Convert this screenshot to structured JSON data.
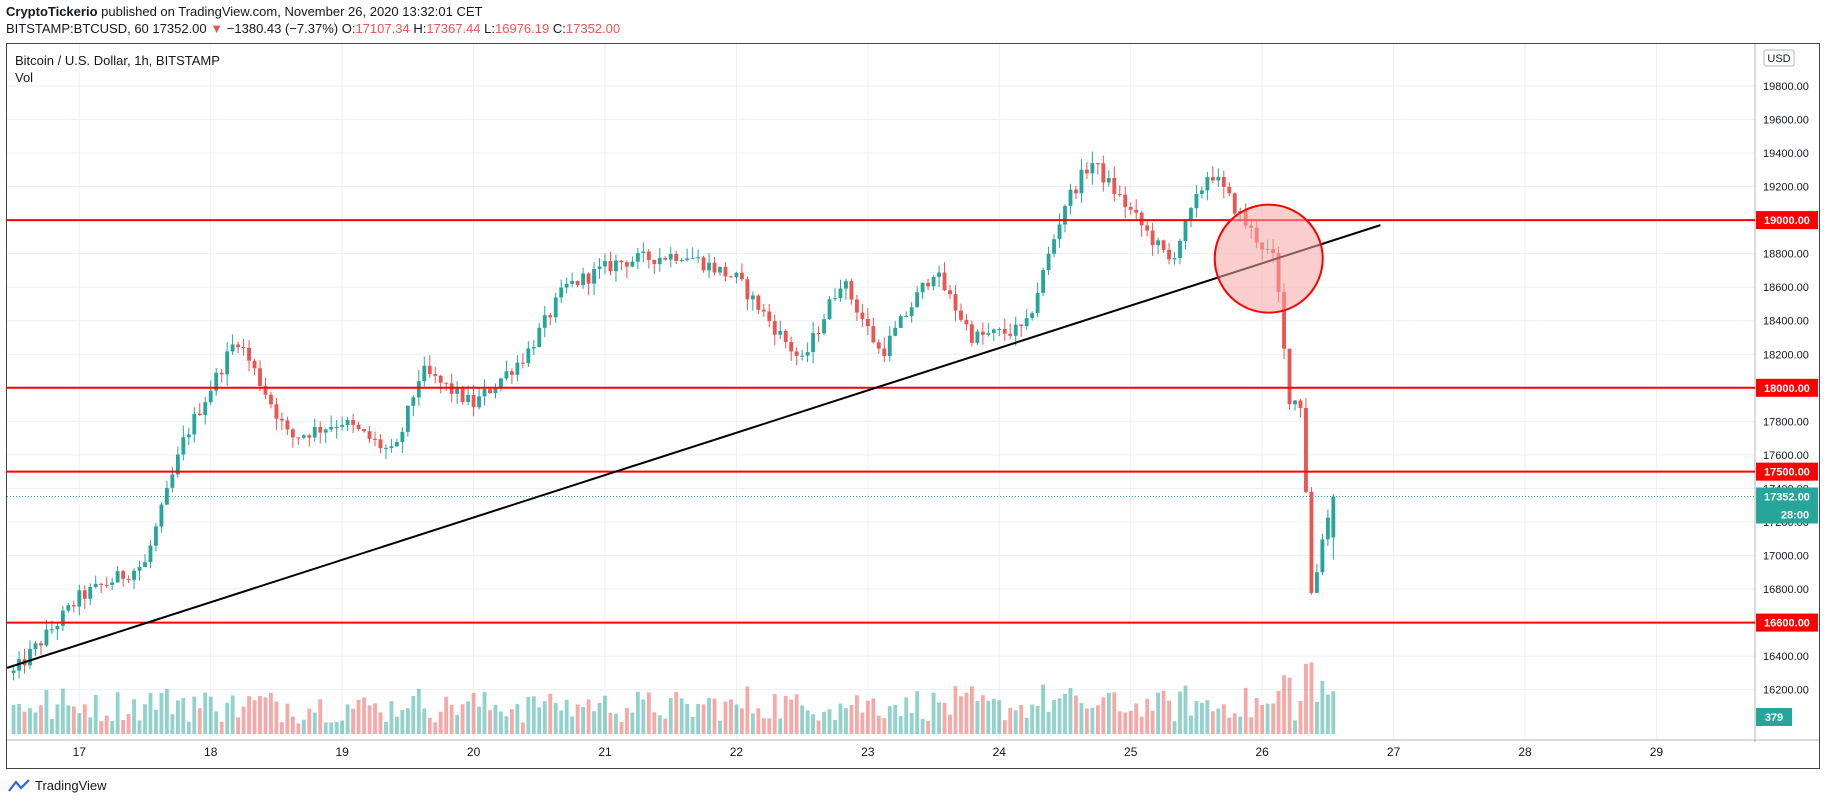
{
  "header": {
    "author": "CryptoTickerio",
    "published_text": "published on TradingView.com, November 26, 2020 13:32:01 CET",
    "symbol_line": "BITSTAMP:BTCUSD, 60",
    "last": "17352.00",
    "change": "−1380.43 (−7.37%)",
    "o_label": "O:",
    "o_val": "17107.34",
    "h_label": "H:",
    "h_val": "17367.44",
    "l_label": "L:",
    "l_val": "16976.19",
    "c_label": "C:",
    "c_val": "17352.00"
  },
  "legend": {
    "title": "Bitcoin / U.S. Dollar, 1h, BITSTAMP",
    "vol": "Vol"
  },
  "footer": {
    "brand": "TradingView"
  },
  "colors": {
    "up": "#26a69a",
    "down": "#ef5350",
    "level": "#ff0000",
    "grid": "#eceff3",
    "trend": "#000000",
    "circle_fill": "#f7a6a6",
    "circle_stroke": "#ff0000"
  },
  "chart_data": {
    "type": "candlestick",
    "title": "Bitcoin / U.S. Dollar, 1h, BITSTAMP",
    "currency_label": "USD",
    "ylim": [
      15900,
      20050
    ],
    "y_ticks": [
      16200,
      16400,
      16600,
      16800,
      17000,
      17200,
      17400,
      17600,
      17800,
      18000,
      18200,
      18400,
      18600,
      18800,
      19000,
      19200,
      19400,
      19600,
      19800
    ],
    "x_tick_labels": [
      "17",
      "18",
      "19",
      "20",
      "21",
      "22",
      "23",
      "24",
      "25",
      "26",
      "27",
      "28",
      "29"
    ],
    "x_range_days": [
      16.45,
      29.75
    ],
    "horizontal_levels": [
      {
        "price": 19000,
        "label": "19000.00"
      },
      {
        "price": 18000,
        "label": "18000.00"
      },
      {
        "price": 17500,
        "label": "17500.00"
      },
      {
        "price": 16600,
        "label": "16600.00"
      }
    ],
    "current_price": {
      "price": 17352,
      "label": "17352.00",
      "countdown": "28:00"
    },
    "volume_badge": "379",
    "trendline": {
      "from": {
        "day": 16.45,
        "price": 16330
      },
      "to": {
        "day": 26.9,
        "price": 18970
      }
    },
    "highlight_circle": {
      "day": 26.05,
      "price": 18770
    },
    "key_price_points": [
      {
        "day": 16.5,
        "price": 16300
      },
      {
        "day": 17.0,
        "price": 16750
      },
      {
        "day": 17.5,
        "price": 16950
      },
      {
        "day": 17.8,
        "price": 17700
      },
      {
        "day": 18.2,
        "price": 18300
      },
      {
        "day": 18.6,
        "price": 17700
      },
      {
        "day": 19.0,
        "price": 17800
      },
      {
        "day": 19.4,
        "price": 17600
      },
      {
        "day": 19.6,
        "price": 18100
      },
      {
        "day": 20.0,
        "price": 17900
      },
      {
        "day": 20.4,
        "price": 18200
      },
      {
        "day": 20.7,
        "price": 18600
      },
      {
        "day": 21.1,
        "price": 18750
      },
      {
        "day": 21.6,
        "price": 18800
      },
      {
        "day": 22.0,
        "price": 18650
      },
      {
        "day": 22.5,
        "price": 18150
      },
      {
        "day": 22.8,
        "price": 18650
      },
      {
        "day": 23.1,
        "price": 18200
      },
      {
        "day": 23.5,
        "price": 18700
      },
      {
        "day": 23.8,
        "price": 18300
      },
      {
        "day": 24.2,
        "price": 18350
      },
      {
        "day": 24.5,
        "price": 19100
      },
      {
        "day": 24.7,
        "price": 19350
      },
      {
        "day": 25.0,
        "price": 19050
      },
      {
        "day": 25.3,
        "price": 18750
      },
      {
        "day": 25.6,
        "price": 19300
      },
      {
        "day": 25.9,
        "price": 18950
      },
      {
        "day": 26.1,
        "price": 18750
      },
      {
        "day": 26.2,
        "price": 17950
      },
      {
        "day": 26.3,
        "price": 17900
      },
      {
        "day": 26.38,
        "price": 16700
      },
      {
        "day": 26.45,
        "price": 17100
      },
      {
        "day": 26.55,
        "price": 17352
      }
    ]
  }
}
